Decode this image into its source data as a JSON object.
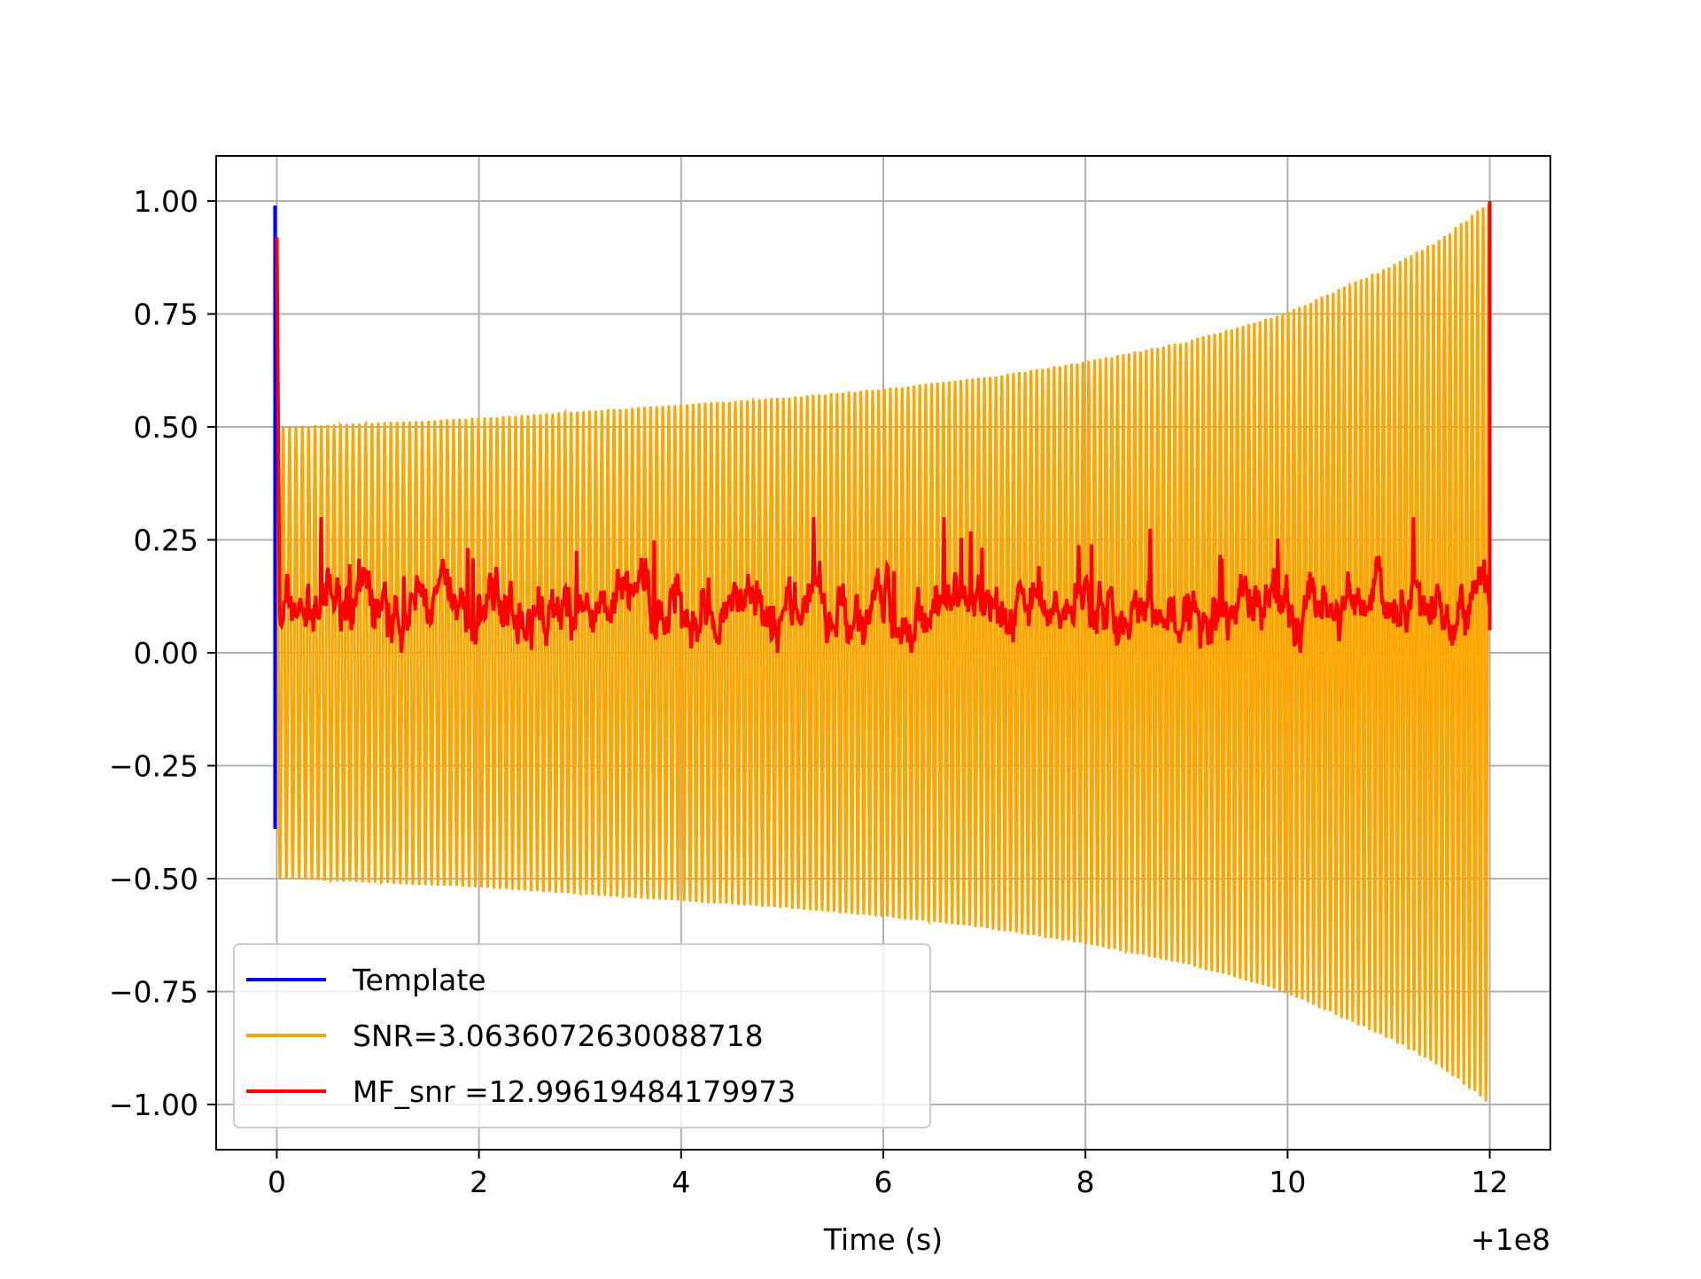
{
  "chart_data": {
    "type": "line",
    "title": "",
    "xlabel": "Time (s)",
    "ylabel": "",
    "x_offset_label": "+1e8",
    "xlim": [
      -0.6,
      12.6
    ],
    "ylim": [
      -1.1,
      1.1
    ],
    "x_ticks": [
      0,
      2,
      4,
      6,
      8,
      10,
      12
    ],
    "x_tick_labels": [
      "0",
      "2",
      "4",
      "6",
      "8",
      "10",
      "12"
    ],
    "y_ticks": [
      1.0,
      0.75,
      0.5,
      0.25,
      0.0,
      -0.25,
      -0.5,
      -0.75,
      -1.0
    ],
    "y_tick_labels": [
      "1.00",
      "0.75",
      "0.50",
      "0.25",
      "0.00",
      "−0.25",
      "−0.50",
      "−0.75",
      "−1.00"
    ],
    "grid": true,
    "legend_position": "lower-left",
    "series": [
      {
        "name": "Template",
        "color": "#0000ff",
        "description_values": {
          "x": [
            0.0,
            0.0,
            0.0
          ],
          "y": [
            0.99,
            -0.39,
            0.0
          ]
        }
      },
      {
        "name": "SNR=3.0636072630088718",
        "color": "#ffa500",
        "envelope": {
          "x": [
            0.0,
            1,
            2,
            3,
            4,
            5,
            6,
            7,
            8,
            9,
            10,
            11,
            11.5,
            12.0
          ],
          "amplitude": [
            0.5,
            0.51,
            0.52,
            0.535,
            0.55,
            0.565,
            0.585,
            0.61,
            0.645,
            0.69,
            0.755,
            0.855,
            0.915,
            1.0
          ]
        },
        "cycles": 190
      },
      {
        "name": "MF_snr =12.99619484179973",
        "color": "#ff0000",
        "peaks": {
          "x": [
            0.0,
            12.0
          ],
          "y": [
            0.92,
            1.0
          ]
        },
        "baseline_mean": 0.1,
        "baseline_range": [
          0.0,
          0.3
        ]
      }
    ]
  }
}
